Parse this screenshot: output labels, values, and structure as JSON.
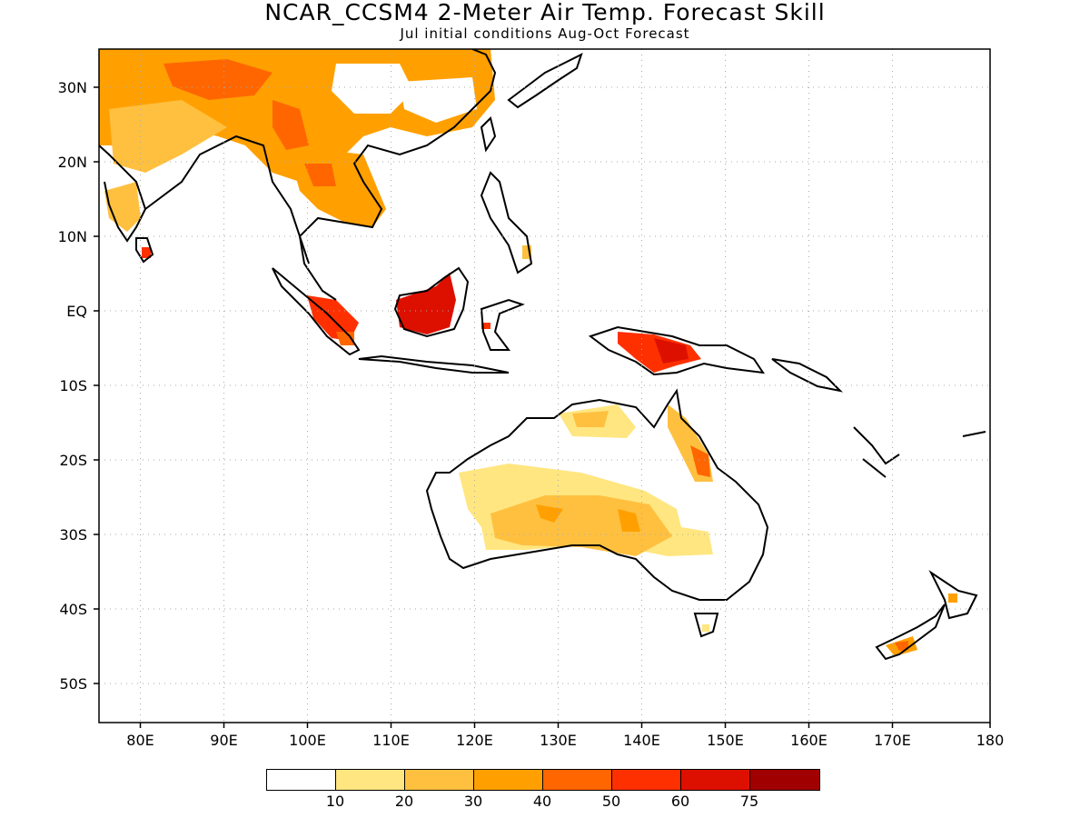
{
  "title": "NCAR_CCSM4 2-Meter Air Temp. Forecast Skill",
  "subtitle": "Jul initial conditions  Aug-Oct Forecast",
  "axes": {
    "lon_ticks": [
      "80E",
      "90E",
      "100E",
      "110E",
      "120E",
      "130E",
      "140E",
      "150E",
      "160E",
      "170E",
      "180"
    ],
    "lat_ticks": [
      "30N",
      "20N",
      "10N",
      "EQ",
      "10S",
      "20S",
      "30S",
      "40S",
      "50S"
    ]
  },
  "colorbar": {
    "colors": [
      "#ffffff",
      "#ffe680",
      "#ffc040",
      "#ffa000",
      "#ff6600",
      "#ff3000",
      "#dd1000",
      "#a00000"
    ],
    "labels": [
      "10",
      "20",
      "30",
      "40",
      "50",
      "60",
      "75"
    ]
  }
}
